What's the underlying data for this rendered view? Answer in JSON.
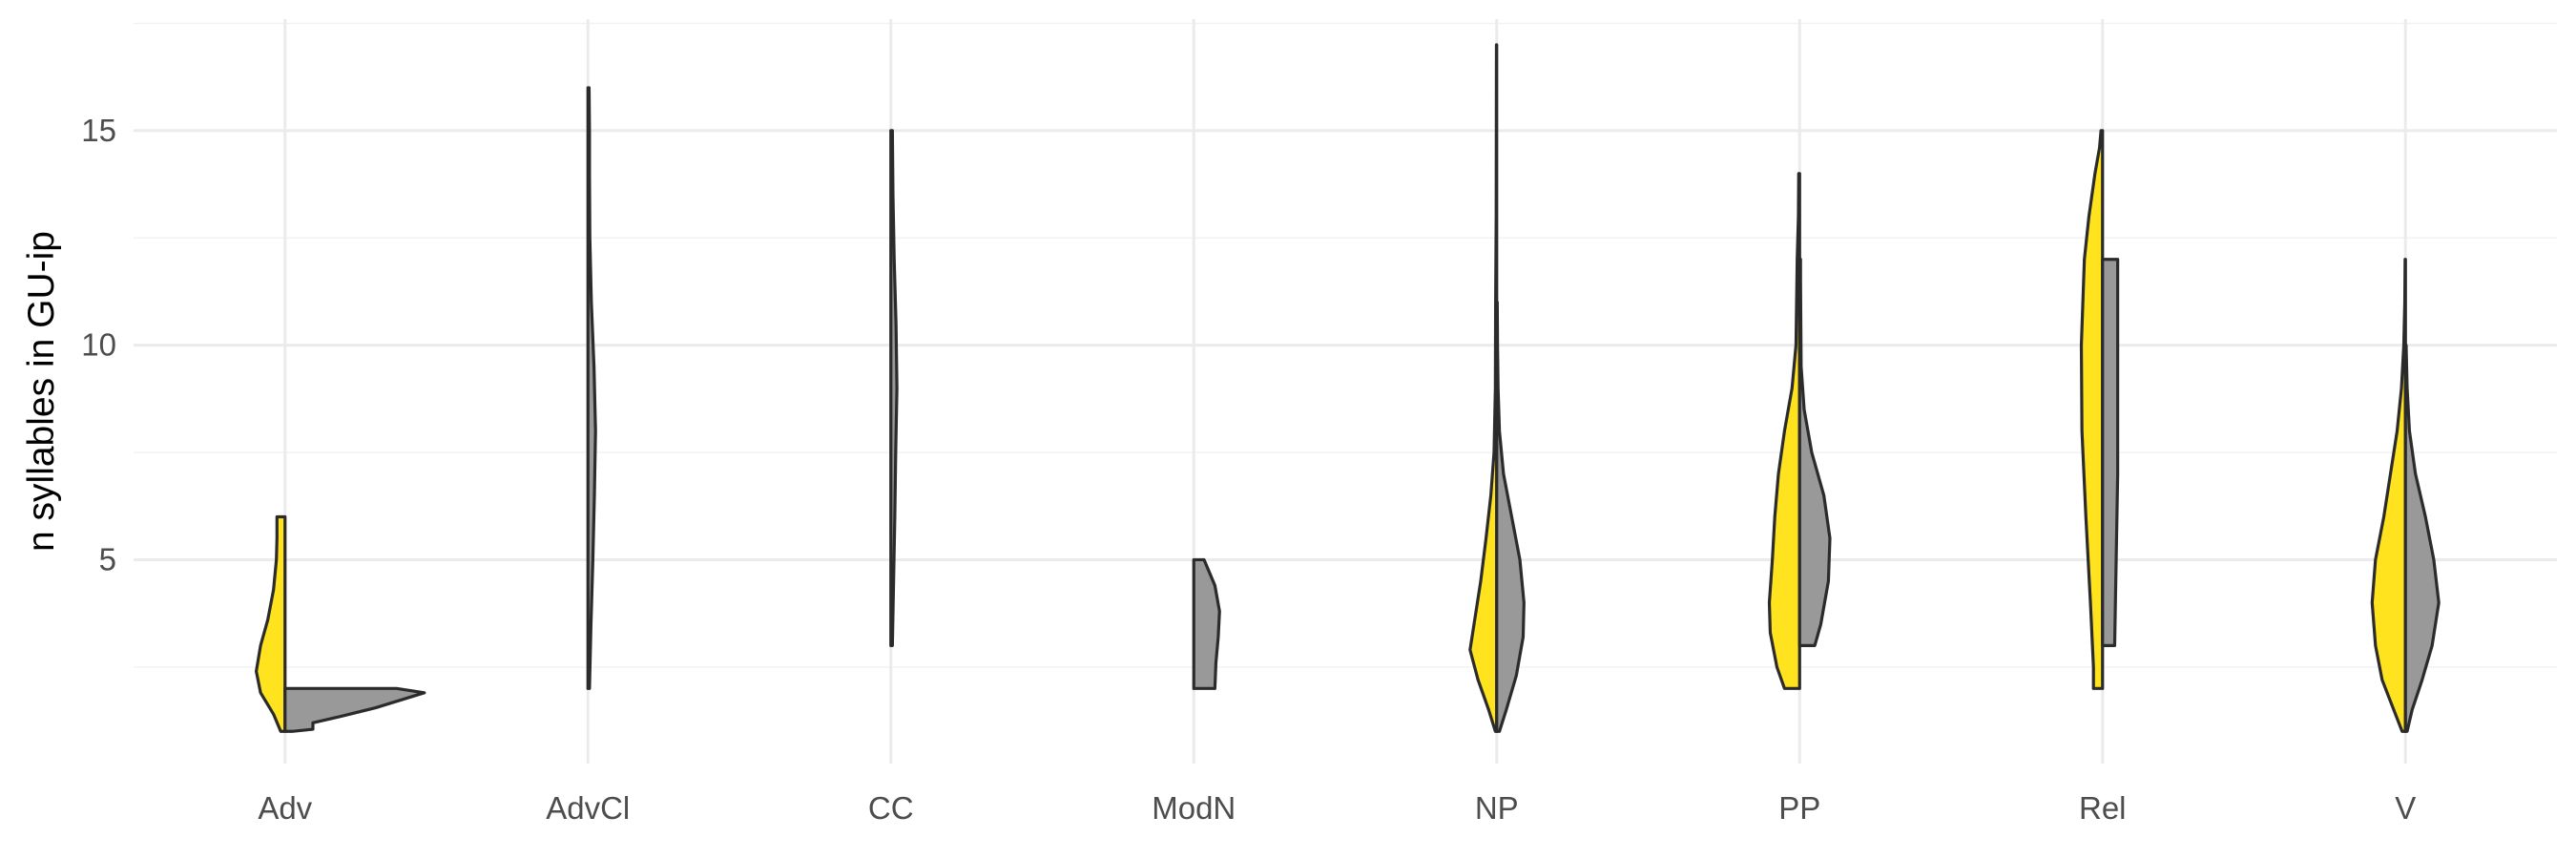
{
  "chart_data": {
    "type": "split-violin",
    "title": "",
    "xlabel": "",
    "ylabel": "n syllables in GU-ip",
    "ylim": [
      0.25,
      17.6
    ],
    "yticks": [
      5,
      10,
      15
    ],
    "grid": "on",
    "legend": "none",
    "categories": [
      "Adv",
      "AdvCl",
      "CC",
      "ModN",
      "NP",
      "PP",
      "Rel",
      "V"
    ],
    "colors": {
      "left": "#FFE31E",
      "right": "#999999"
    },
    "series": [
      {
        "side": "left",
        "color": "#FFE31E",
        "violins": [
          {
            "category": "Adv",
            "min": 1,
            "max": 6,
            "scale": 0.095,
            "profile": [
              [
                1,
                0.15
              ],
              [
                1.4,
                0.4
              ],
              [
                1.9,
                0.85
              ],
              [
                2.4,
                1
              ],
              [
                3,
                0.85
              ],
              [
                3.6,
                0.6
              ],
              [
                4.3,
                0.4
              ],
              [
                5,
                0.3
              ],
              [
                5.5,
                0.28
              ],
              [
                6,
                0.28
              ]
            ]
          },
          {
            "category": "AdvCl",
            "min": 0,
            "max": 0,
            "scale": 0,
            "profile": []
          },
          {
            "category": "CC",
            "min": 0,
            "max": 0,
            "scale": 0,
            "profile": []
          },
          {
            "category": "ModN",
            "min": 0,
            "max": 0,
            "scale": 0,
            "profile": []
          },
          {
            "category": "NP",
            "min": 1,
            "max": 17,
            "scale": 0.088,
            "profile": [
              [
                1,
                0.05
              ],
              [
                1.5,
                0.3
              ],
              [
                2.2,
                0.7
              ],
              [
                2.9,
                1
              ],
              [
                3.5,
                0.85
              ],
              [
                4.5,
                0.6
              ],
              [
                5.5,
                0.4
              ],
              [
                6.5,
                0.22
              ],
              [
                7.5,
                0.1
              ],
              [
                9,
                0.05
              ],
              [
                11,
                0.04
              ],
              [
                13,
                0.02
              ],
              [
                15,
                0.015
              ],
              [
                17,
                0.01
              ]
            ]
          },
          {
            "category": "PP",
            "min": 2,
            "max": 14,
            "scale": 0.1,
            "profile": [
              [
                2,
                0.5
              ],
              [
                2.5,
                0.75
              ],
              [
                3.3,
                0.97
              ],
              [
                4,
                1
              ],
              [
                5,
                0.9
              ],
              [
                6,
                0.82
              ],
              [
                7,
                0.7
              ],
              [
                8,
                0.5
              ],
              [
                9,
                0.25
              ],
              [
                10,
                0.12
              ],
              [
                11,
                0.1
              ],
              [
                12,
                0.08
              ],
              [
                13,
                0.04
              ],
              [
                14,
                0.03
              ]
            ]
          },
          {
            "category": "Rel",
            "min": 2,
            "max": 15,
            "scale": 0.1,
            "profile": [
              [
                2,
                0.3
              ],
              [
                2.5,
                0.3
              ],
              [
                4,
                0.4
              ],
              [
                6,
                0.55
              ],
              [
                8,
                0.68
              ],
              [
                10,
                0.7
              ],
              [
                12,
                0.6
              ],
              [
                13,
                0.45
              ],
              [
                14,
                0.25
              ],
              [
                14.6,
                0.1
              ],
              [
                15,
                0.05
              ]
            ]
          },
          {
            "category": "V",
            "min": 1,
            "max": 12,
            "scale": 0.11,
            "profile": [
              [
                1,
                0.1
              ],
              [
                1.5,
                0.35
              ],
              [
                2.2,
                0.7
              ],
              [
                3,
                0.9
              ],
              [
                4,
                1
              ],
              [
                5,
                0.9
              ],
              [
                6,
                0.65
              ],
              [
                7,
                0.45
              ],
              [
                8,
                0.25
              ],
              [
                9,
                0.12
              ],
              [
                10,
                0.05
              ],
              [
                11,
                0.02
              ],
              [
                12,
                0.01
              ]
            ]
          }
        ]
      },
      {
        "side": "right",
        "color": "#999999",
        "violins": [
          {
            "category": "Adv",
            "min": 1,
            "max": 2,
            "scale": 0.46,
            "profile": [
              [
                1,
                0.05
              ],
              [
                1.05,
                0.2
              ],
              [
                1.2,
                0.2
              ],
              [
                1.35,
                0.4
              ],
              [
                1.55,
                0.65
              ],
              [
                1.75,
                0.85
              ],
              [
                1.9,
                1
              ],
              [
                2,
                0.8
              ]
            ]
          },
          {
            "category": "AdvCl",
            "min": 2,
            "max": 16,
            "scale": 0.025,
            "profile": [
              [
                2,
                0.2
              ],
              [
                3.5,
                0.4
              ],
              [
                5,
                0.65
              ],
              [
                6.5,
                0.85
              ],
              [
                8,
                1
              ],
              [
                9.5,
                0.8
              ],
              [
                11,
                0.45
              ],
              [
                12.5,
                0.25
              ],
              [
                14,
                0.2
              ],
              [
                15,
                0.2
              ],
              [
                16,
                0.15
              ]
            ]
          },
          {
            "category": "CC",
            "min": 3,
            "max": 15,
            "scale": 0.02,
            "profile": [
              [
                3,
                0.25
              ],
              [
                4.5,
                0.45
              ],
              [
                6,
                0.65
              ],
              [
                7.5,
                0.8
              ],
              [
                9,
                1
              ],
              [
                10.5,
                0.85
              ],
              [
                12,
                0.55
              ],
              [
                13.5,
                0.35
              ],
              [
                15,
                0.25
              ]
            ]
          },
          {
            "category": "ModN",
            "min": 2,
            "max": 5,
            "scale": 0.085,
            "profile": [
              [
                2,
                0.82
              ],
              [
                2.6,
                0.86
              ],
              [
                3.2,
                0.95
              ],
              [
                3.8,
                1
              ],
              [
                4.4,
                0.82
              ],
              [
                5,
                0.4
              ]
            ]
          },
          {
            "category": "NP",
            "min": 1,
            "max": 11,
            "scale": 0.09,
            "profile": [
              [
                1,
                0.1
              ],
              [
                1.5,
                0.35
              ],
              [
                2.3,
                0.72
              ],
              [
                3.2,
                0.97
              ],
              [
                4,
                1
              ],
              [
                5,
                0.85
              ],
              [
                6,
                0.55
              ],
              [
                7,
                0.25
              ],
              [
                8,
                0.1
              ],
              [
                9,
                0.05
              ],
              [
                10,
                0.03
              ],
              [
                11,
                0.02
              ]
            ]
          },
          {
            "category": "PP",
            "min": 3,
            "max": 12,
            "scale": 0.1,
            "profile": [
              [
                3,
                0.5
              ],
              [
                3.5,
                0.7
              ],
              [
                4.5,
                0.95
              ],
              [
                5.5,
                1
              ],
              [
                6.5,
                0.8
              ],
              [
                7.5,
                0.4
              ],
              [
                8.5,
                0.15
              ],
              [
                9.5,
                0.05
              ],
              [
                10.5,
                0.04
              ],
              [
                11.5,
                0.03
              ],
              [
                12,
                0.03
              ]
            ]
          },
          {
            "category": "Rel",
            "min": 3,
            "max": 12,
            "scale": 0.1,
            "profile": [
              [
                3,
                0.4
              ],
              [
                5,
                0.45
              ],
              [
                7,
                0.5
              ],
              [
                9,
                0.5
              ],
              [
                11,
                0.5
              ],
              [
                12,
                0.5
              ]
            ]
          },
          {
            "category": "V",
            "min": 1,
            "max": 10,
            "scale": 0.11,
            "profile": [
              [
                1,
                0.05
              ],
              [
                1.5,
                0.2
              ],
              [
                2.2,
                0.5
              ],
              [
                3,
                0.8
              ],
              [
                4,
                1
              ],
              [
                5,
                0.85
              ],
              [
                6,
                0.6
              ],
              [
                7,
                0.3
              ],
              [
                8,
                0.12
              ],
              [
                9,
                0.05
              ],
              [
                10,
                0.02
              ]
            ]
          }
        ]
      }
    ]
  }
}
